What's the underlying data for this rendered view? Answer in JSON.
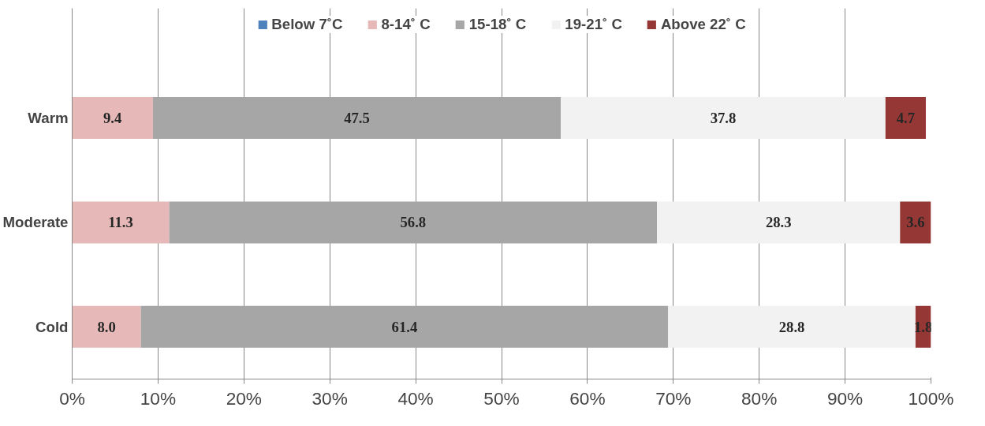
{
  "chart_data": {
    "type": "bar",
    "orientation": "horizontal",
    "stacked": true,
    "categories": [
      "Warm",
      "Moderate",
      "Cold"
    ],
    "series": [
      {
        "name": "Below 7˚C",
        "color": "#4f81bd",
        "values": [
          0,
          0,
          0
        ],
        "value_labels": [
          null,
          null,
          null
        ]
      },
      {
        "name": "8-14˚ C",
        "color": "#e6b9b8",
        "values": [
          9.4,
          11.3,
          8.0
        ],
        "value_labels": [
          "9.4",
          "11.3",
          "8.0"
        ]
      },
      {
        "name": "15-18˚ C",
        "color": "#a6a6a6",
        "values": [
          47.5,
          56.8,
          61.4
        ],
        "value_labels": [
          "47.5",
          "56.8",
          "61.4"
        ]
      },
      {
        "name": "19-21˚ C",
        "color": "#f2f2f2",
        "values": [
          37.8,
          28.3,
          28.8
        ],
        "value_labels": [
          "37.8",
          "28.3",
          "28.8"
        ]
      },
      {
        "name": "Above 22˚ C",
        "color": "#953735",
        "values": [
          4.7,
          3.6,
          1.8
        ],
        "value_labels": [
          "4.7",
          "3.6",
          "1.8"
        ]
      }
    ],
    "xlim": [
      0,
      100
    ],
    "xticks": [
      {
        "value": 0,
        "label": "0%"
      },
      {
        "value": 10,
        "label": "10%"
      },
      {
        "value": 20,
        "label": "20%"
      },
      {
        "value": 30,
        "label": "30%"
      },
      {
        "value": 40,
        "label": "40%"
      },
      {
        "value": 50,
        "label": "50%"
      },
      {
        "value": 60,
        "label": "60%"
      },
      {
        "value": 70,
        "label": "70%"
      },
      {
        "value": 80,
        "label": "80%"
      },
      {
        "value": 90,
        "label": "90%"
      },
      {
        "value": 100,
        "label": "100%"
      }
    ],
    "grid": "x",
    "legend": "top"
  }
}
